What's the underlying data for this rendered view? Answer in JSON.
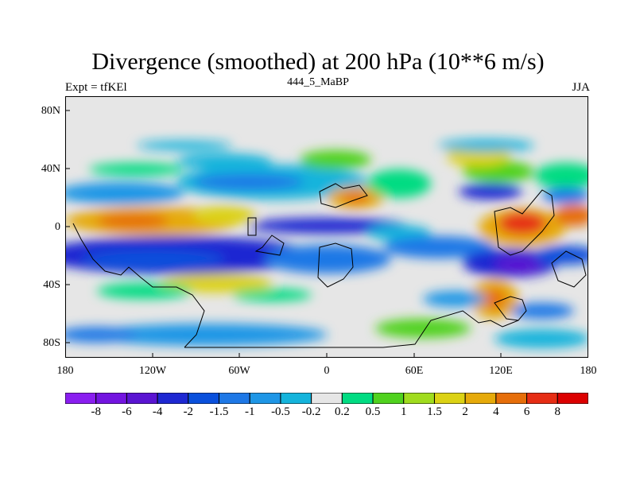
{
  "title": "Divergence (smoothed) at 200 hPa (10**6 m/s)",
  "left_label": "Expt = tfKEl",
  "center_label": "444_5_MaBP",
  "right_label": "JJA",
  "y_ticks": [
    "80N",
    "40N",
    "0",
    "40S",
    "80S"
  ],
  "x_ticks": [
    "180",
    "120W",
    "60W",
    "0",
    "60E",
    "120E",
    "180"
  ],
  "colorbar": {
    "colors": [
      "#8a1ef0",
      "#7314e0",
      "#5a14d2",
      "#1e28d2",
      "#0a50dc",
      "#1e78e6",
      "#1e96e6",
      "#14b4dc",
      "#e6e6e6",
      "#00dc82",
      "#50d21e",
      "#a0dc1e",
      "#dcd214",
      "#e6aa0a",
      "#e66e0a",
      "#e62d14",
      "#dc0000"
    ],
    "labels": [
      "-8",
      "-6",
      "-4",
      "-2",
      "-1.5",
      "-1",
      "-0.5",
      "-0.2",
      "0.2",
      "0.5",
      "1",
      "1.5",
      "2",
      "4",
      "6",
      "8"
    ]
  }
}
